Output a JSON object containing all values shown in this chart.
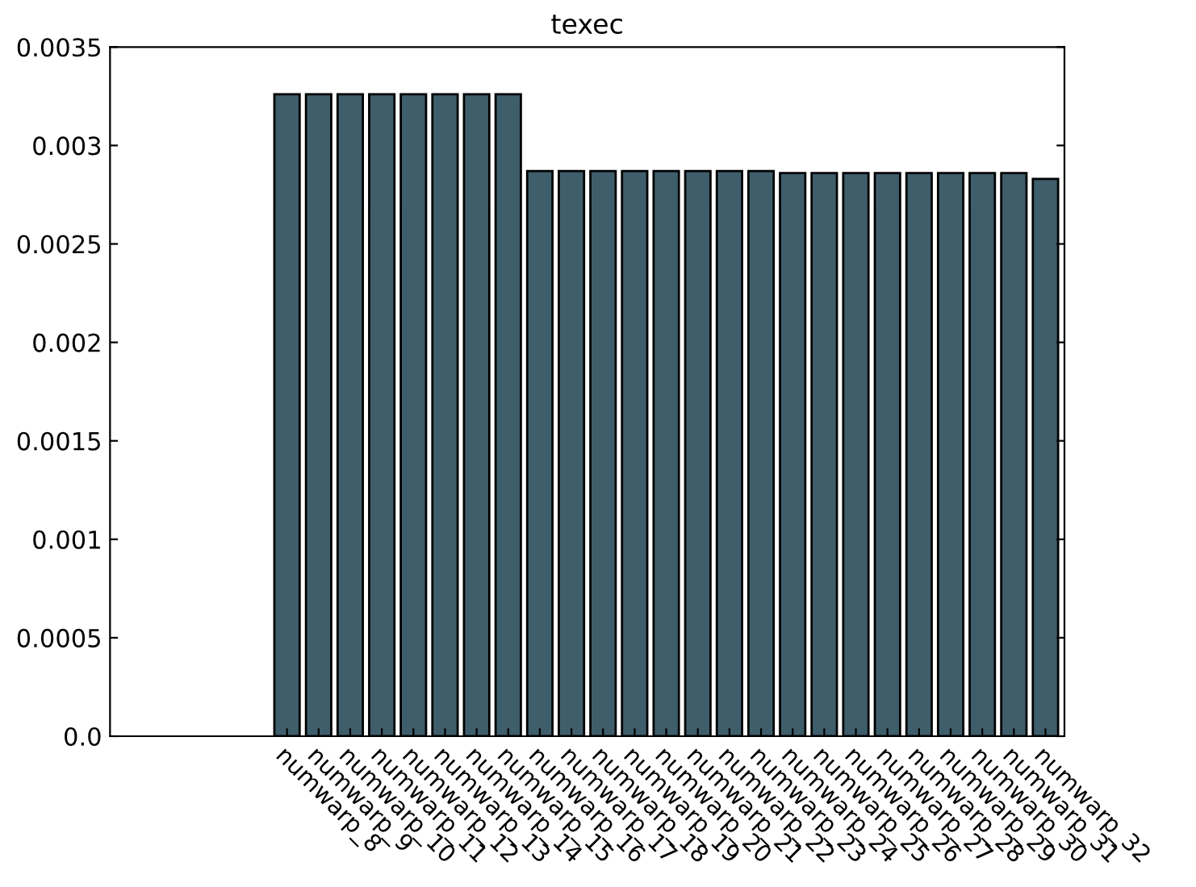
{
  "chart_data": {
    "type": "bar",
    "title": "texec",
    "categories": [
      null,
      null,
      null,
      null,
      null,
      "numwarp_8",
      "numwarp_9",
      "numwarp_10",
      "numwarp_11",
      "numwarp_12",
      "numwarp_13",
      "numwarp_14",
      "numwarp_15",
      "numwarp_16",
      "numwarp_17",
      "numwarp_18",
      "numwarp_19",
      "numwarp_20",
      "numwarp_21",
      "numwarp_22",
      "numwarp_23",
      "numwarp_24",
      "numwarp_25",
      "numwarp_26",
      "numwarp_27",
      "numwarp_28",
      "numwarp_29",
      "numwarp_30",
      "numwarp_31",
      "numwarp_32"
    ],
    "values": [
      null,
      null,
      null,
      null,
      null,
      0.00326,
      0.00326,
      0.00326,
      0.00326,
      0.00326,
      0.00326,
      0.00326,
      0.00326,
      0.00287,
      0.00287,
      0.00287,
      0.00287,
      0.00287,
      0.00287,
      0.00287,
      0.00287,
      0.00286,
      0.00286,
      0.00286,
      0.00286,
      0.00286,
      0.00286,
      0.00286,
      0.00286,
      0.00283
    ],
    "color": "#3f5e6b",
    "ylim": [
      0,
      0.0035
    ],
    "yticks": [
      {
        "value": 0,
        "label": "0.0"
      },
      0.0005,
      0.001,
      0.0015,
      0.002,
      0.0025,
      0.003,
      0.0035
    ],
    "grid": false
  }
}
